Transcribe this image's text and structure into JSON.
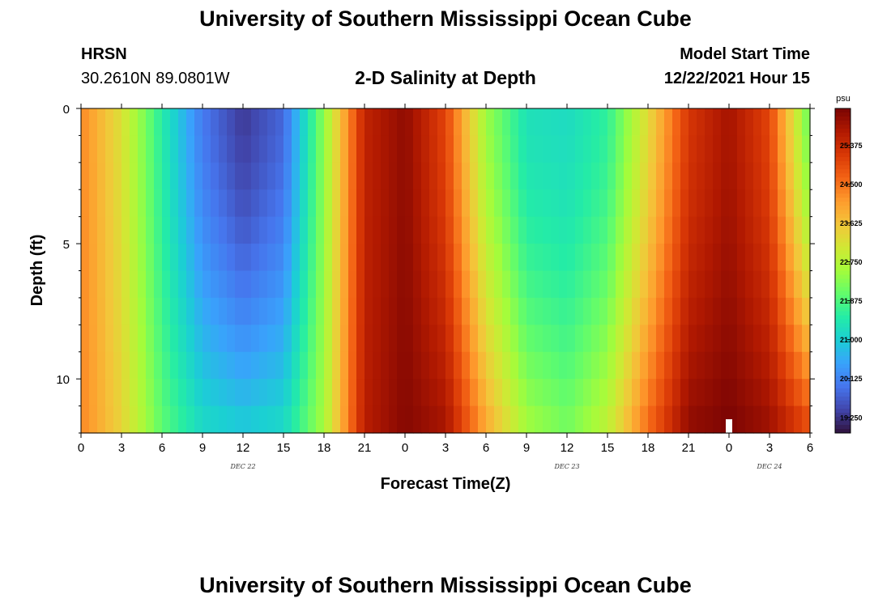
{
  "header": {
    "title": "University of Southern Mississippi Ocean Cube",
    "station": "HRSN",
    "coords": "30.2610N  89.0801W",
    "subtitle": "2-D Salinity at Depth",
    "start_label": "Model Start Time",
    "start_value": "12/22/2021 Hour 15"
  },
  "footer": {
    "title": "University of Southern Mississippi Ocean Cube"
  },
  "chart_data": {
    "type": "heatmap",
    "title": "2-D Salinity at Depth",
    "xlabel": "Forecast Time(Z)",
    "ylabel": "Depth (ft)",
    "x_hours_range": [
      0,
      54
    ],
    "x_tick_labels": [
      "0",
      "3",
      "6",
      "9",
      "12",
      "15",
      "18",
      "21",
      "0",
      "3",
      "6",
      "9",
      "12",
      "15",
      "18",
      "21",
      "0",
      "3",
      "6"
    ],
    "day_labels": [
      {
        "text": "DEC 22",
        "hour": 12
      },
      {
        "text": "DEC 23",
        "hour": 36
      },
      {
        "text": "DEC 24",
        "hour": 51
      }
    ],
    "y_range_ft": [
      0,
      12
    ],
    "y_tick_labels": [
      "0",
      "5",
      "10"
    ],
    "y_tick_values": [
      0,
      5,
      10
    ],
    "colorbar": {
      "unit": "psu",
      "min": 18.9,
      "max": 26.2,
      "tick_labels": [
        "25.375",
        "24.500",
        "23.625",
        "22.750",
        "21.875",
        "21.000",
        "20.125",
        "19.250"
      ],
      "tick_values": [
        25.375,
        24.5,
        23.625,
        22.75,
        21.875,
        21.0,
        20.125,
        19.25
      ]
    },
    "salinity_profile_psu": {
      "description": "approximate surface salinity by forecast hour (every 3 h)",
      "hours": [
        0,
        3,
        6,
        9,
        12,
        15,
        18,
        21,
        24,
        27,
        30,
        33,
        36,
        39,
        42,
        45,
        48,
        51,
        54
      ],
      "surface": [
        24.3,
        23.2,
        21.5,
        20.0,
        19.3,
        19.8,
        22.4,
        25.5,
        26.0,
        25.0,
        22.5,
        21.3,
        21.2,
        21.6,
        23.3,
        25.2,
        25.8,
        25.0,
        22.0
      ],
      "bottom": [
        24.3,
        23.4,
        22.0,
        21.2,
        21.0,
        21.2,
        22.6,
        25.6,
        26.1,
        25.8,
        24.0,
        22.6,
        22.2,
        22.9,
        24.6,
        26.0,
        26.2,
        25.9,
        25.0
      ]
    }
  },
  "colors": {
    "colormap": [
      "#30123b",
      "#4145ab",
      "#4675ed",
      "#39a2fc",
      "#1bcfd4",
      "#24eca6",
      "#61fc6c",
      "#a4fc3b",
      "#d1e834",
      "#f3c63a",
      "#fe9b2d",
      "#f36315",
      "#d93806",
      "#b11901",
      "#7a0403"
    ],
    "gap_marker": "#ffffff"
  }
}
